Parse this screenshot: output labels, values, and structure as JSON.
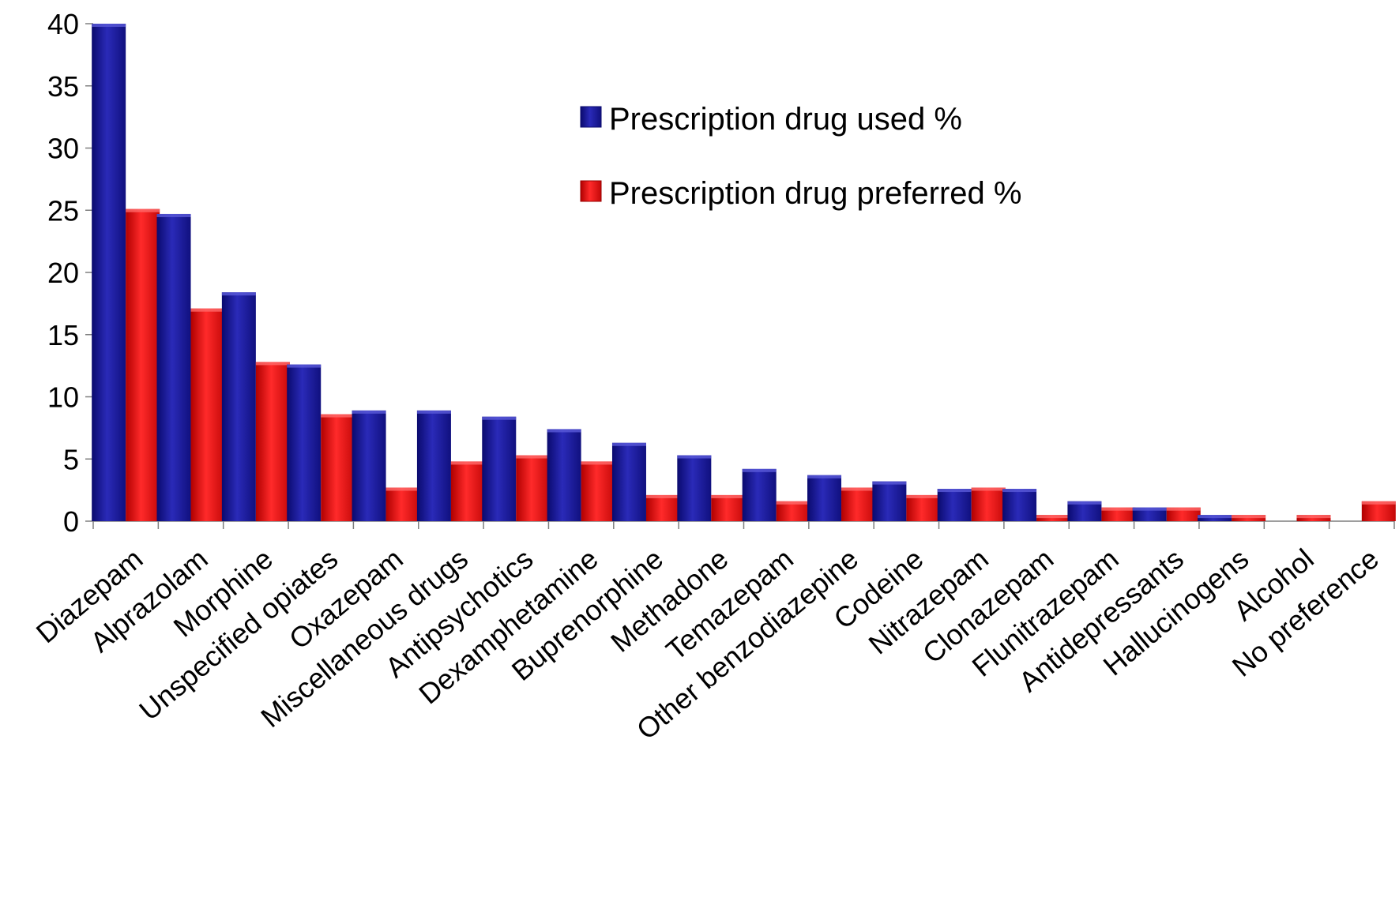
{
  "chart_data": {
    "type": "bar",
    "title": "",
    "xlabel": "",
    "ylabel": "",
    "ylim": [
      0,
      40
    ],
    "yticks": [
      0,
      5,
      10,
      15,
      20,
      25,
      30,
      35,
      40
    ],
    "grid": false,
    "legend_position": "top-right",
    "categories": [
      "Diazepam",
      "Alprazolam",
      "Morphine",
      "Unspecified opiates",
      "Oxazepam",
      "Miscellaneous drugs",
      "Antipsychotics",
      "Dexamphetamine",
      "Buprenorphine",
      "Methadone",
      "Temazepam",
      "Other benzodiazepine",
      "Codeine",
      "Nitrazepam",
      "Clonazepam",
      "Flunitrazepam",
      "Antidepressants",
      "Hallucinogens",
      "Alcohol",
      "No preference"
    ],
    "series": [
      {
        "name": "Prescription drug used %",
        "color": "#1c1c9c",
        "values": [
          40,
          24.7,
          18.4,
          12.6,
          8.9,
          8.9,
          8.4,
          7.4,
          6.3,
          5.3,
          4.2,
          3.7,
          3.2,
          2.6,
          2.6,
          1.6,
          1.1,
          0.5,
          0,
          0
        ]
      },
      {
        "name": "Prescription drug preferred %",
        "color": "#e31010",
        "values": [
          25.1,
          17.1,
          12.8,
          8.6,
          2.7,
          4.8,
          5.3,
          4.8,
          2.1,
          2.1,
          1.6,
          2.7,
          2.1,
          2.7,
          0.5,
          1.1,
          1.1,
          0.5,
          0.5,
          1.6
        ]
      }
    ]
  }
}
